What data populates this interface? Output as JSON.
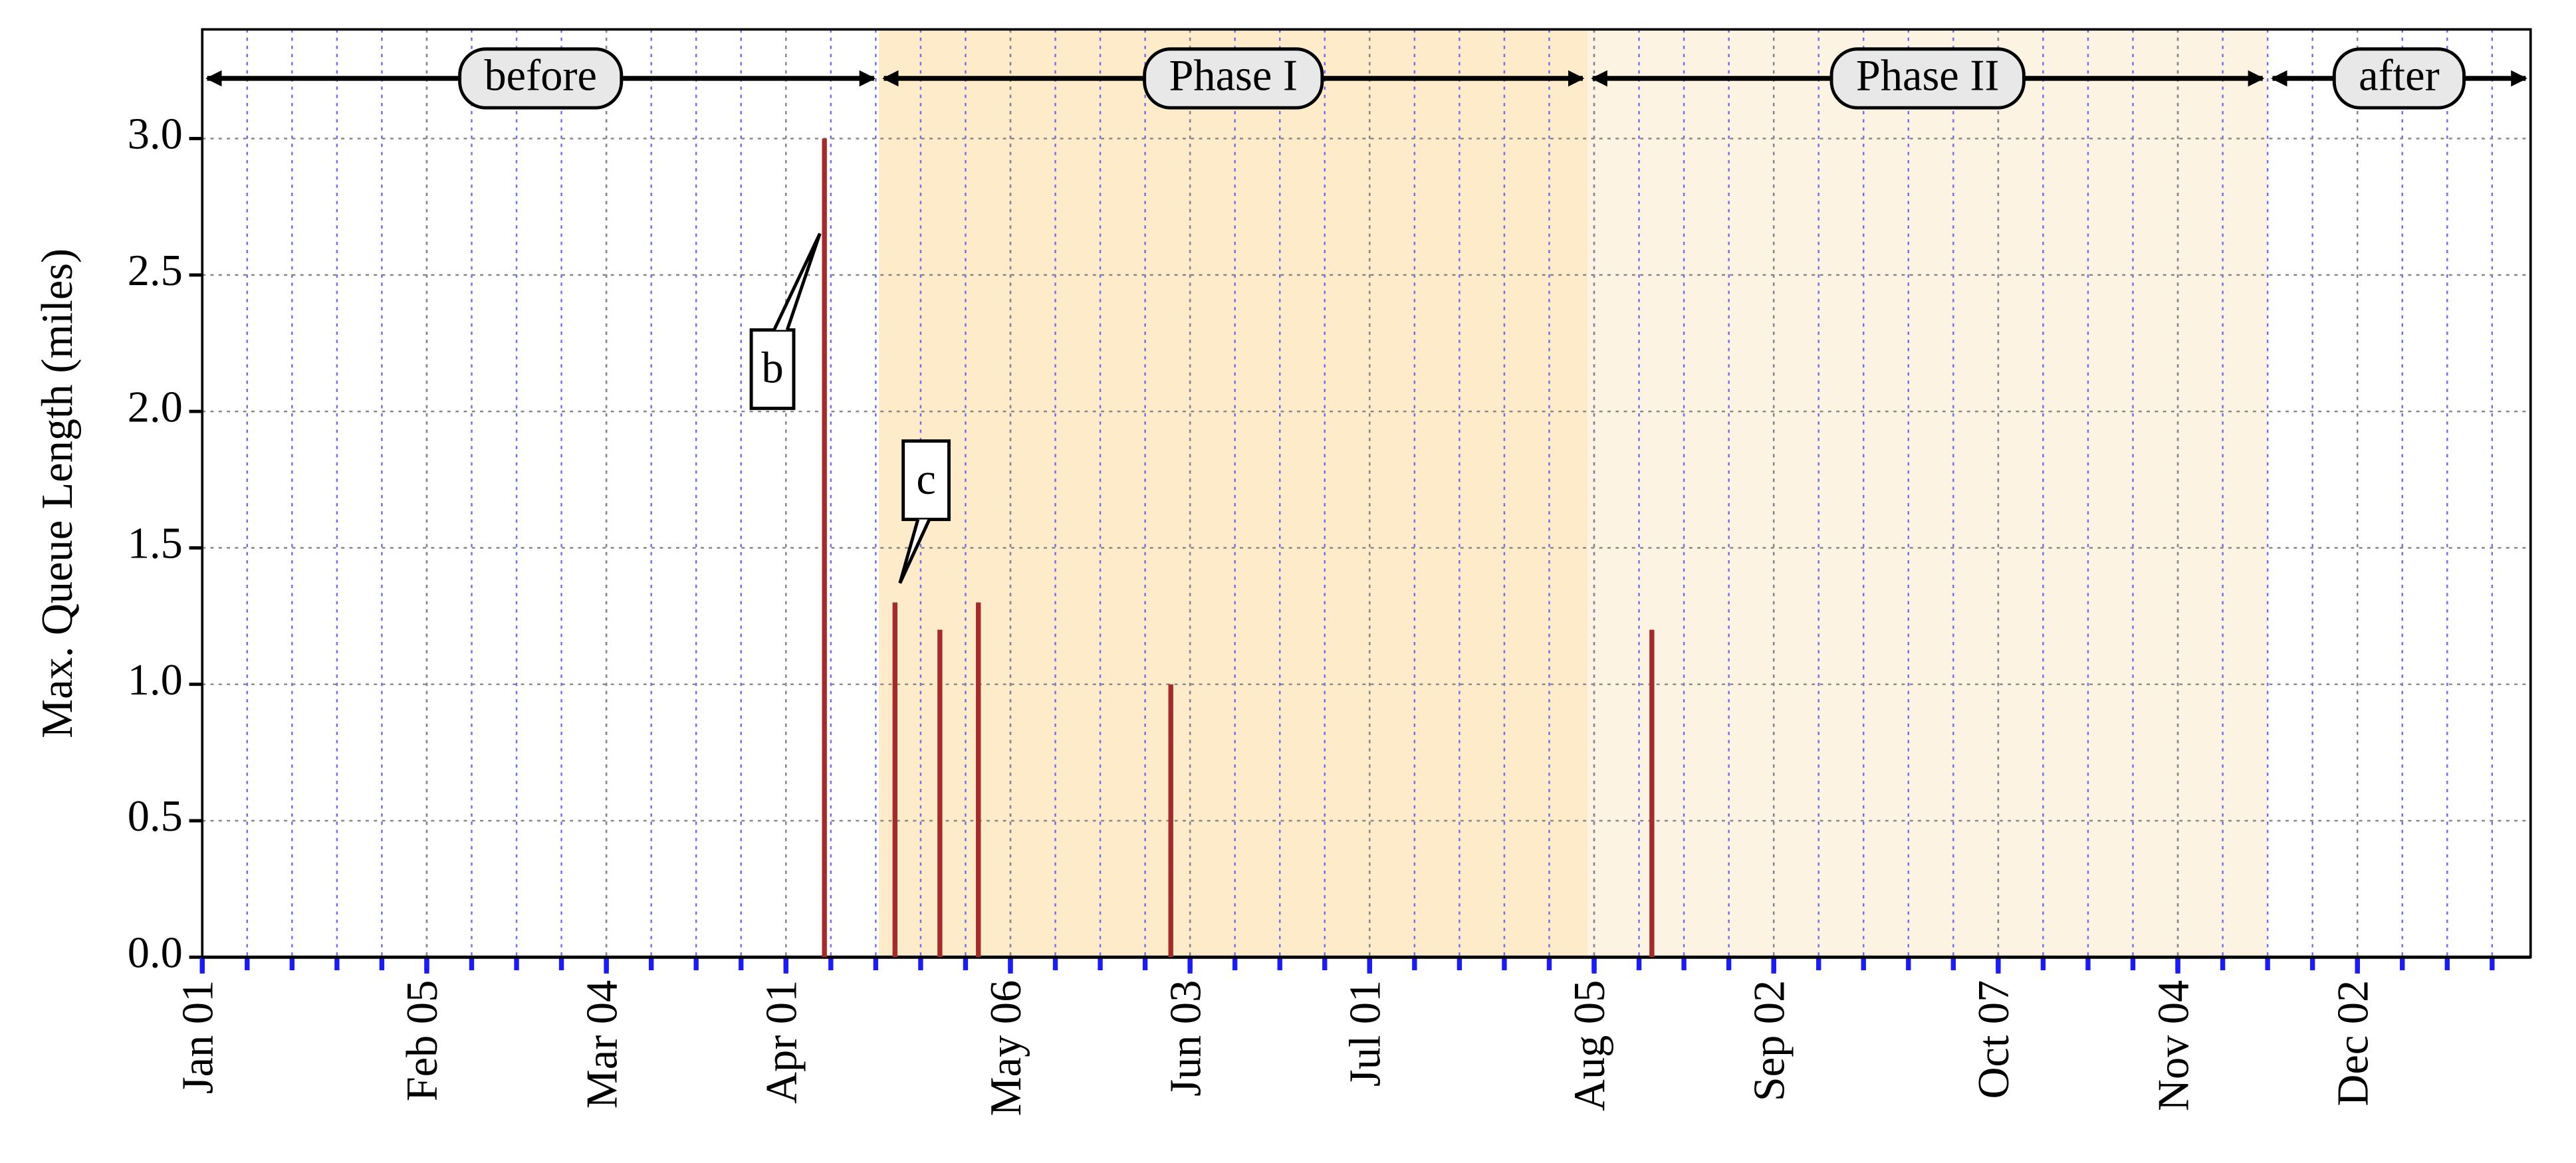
{
  "chart_data": {
    "type": "bar",
    "y_label": "Max. Queue Length (miles)",
    "x": [
      98,
      109,
      116,
      122,
      152,
      227
    ],
    "values": [
      3.0,
      1.3,
      1.2,
      1.3,
      1.0,
      1.2
    ],
    "color": "#a52a2a",
    "xlim": [
      1,
      364
    ],
    "xticks": [
      {
        "value": 1,
        "label": "Jan 01"
      },
      {
        "value": 36,
        "label": "Feb 05"
      },
      {
        "value": 64,
        "label": "Mar 04"
      },
      {
        "value": 92,
        "label": "Apr 01"
      },
      {
        "value": 127,
        "label": "May 06"
      },
      {
        "value": 155,
        "label": "Jun 03"
      },
      {
        "value": 183,
        "label": "Jul 01"
      },
      {
        "value": 218,
        "label": "Aug 05"
      },
      {
        "value": 246,
        "label": "Sep 02"
      },
      {
        "value": 281,
        "label": "Oct 07"
      },
      {
        "value": 309,
        "label": "Nov 04"
      },
      {
        "value": 337,
        "label": "Dec 02"
      }
    ],
    "xminorticks": [
      1,
      8,
      15,
      22,
      29,
      36,
      43,
      50,
      57,
      64,
      71,
      78,
      85,
      92,
      99,
      106,
      113,
      120,
      127,
      134,
      141,
      148,
      155,
      162,
      169,
      176,
      183,
      190,
      197,
      204,
      211,
      218,
      225,
      232,
      239,
      246,
      253,
      260,
      267,
      274,
      281,
      288,
      295,
      302,
      309,
      316,
      323,
      330,
      337,
      344,
      351,
      358
    ],
    "ylim": [
      0,
      3.4
    ],
    "yticks": [
      {
        "value": 0,
        "label": "0.0"
      },
      {
        "value": 0.5,
        "label": "0.5"
      },
      {
        "value": 1,
        "label": "1.0"
      },
      {
        "value": 1.5,
        "label": "1.5"
      },
      {
        "value": 2,
        "label": "2.0"
      },
      {
        "value": 2.5,
        "label": "2.5"
      },
      {
        "value": 3,
        "label": "3.0"
      }
    ],
    "grid": true,
    "phases": [
      {
        "label": "before",
        "start": 1,
        "end": 106.5,
        "color": "#ffffff"
      },
      {
        "label": "Phase I",
        "start": 106.5,
        "end": 217,
        "color": "#fdebc9"
      },
      {
        "label": "Phase II",
        "start": 217,
        "end": 323,
        "color": "#fdf3e2"
      },
      {
        "label": "after",
        "start": 323,
        "end": 364,
        "color": "#ffffff"
      }
    ],
    "annotations": [
      {
        "text": "b"
      },
      {
        "text": "c"
      }
    ]
  }
}
